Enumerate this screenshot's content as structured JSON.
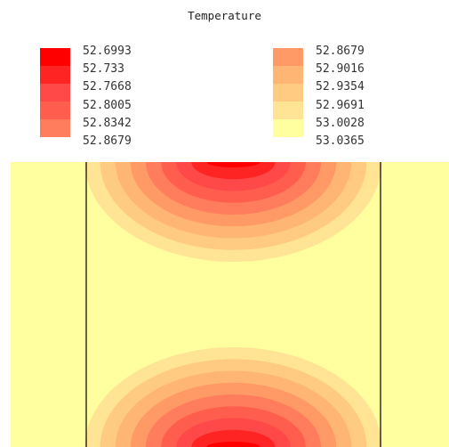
{
  "title": "Temperature",
  "legend": {
    "left_labels": [
      "52.6993",
      "52.733",
      "52.7668",
      "52.8005",
      "52.8342",
      "52.8679"
    ],
    "right_labels": [
      "52.8679",
      "52.9016",
      "52.9354",
      "52.9691",
      "53.0028",
      "53.0365"
    ],
    "left_colors": [
      "#ff0000",
      "#ff2424",
      "#ff4848",
      "#ff5e4e",
      "#ff7c5c"
    ],
    "right_colors": [
      "#ff9a66",
      "#ffb573",
      "#ffcb83",
      "#ffe495",
      "#ffff9f"
    ]
  },
  "contour": {
    "levels": [
      "#ff0000",
      "#ff2424",
      "#ff4848",
      "#ff5e4e",
      "#ff7c5c",
      "#ff9a66",
      "#ffb573",
      "#ffcb83",
      "#ffe495",
      "#ffff9f"
    ],
    "background": "#ffff9f",
    "border_color": "#000000"
  }
}
